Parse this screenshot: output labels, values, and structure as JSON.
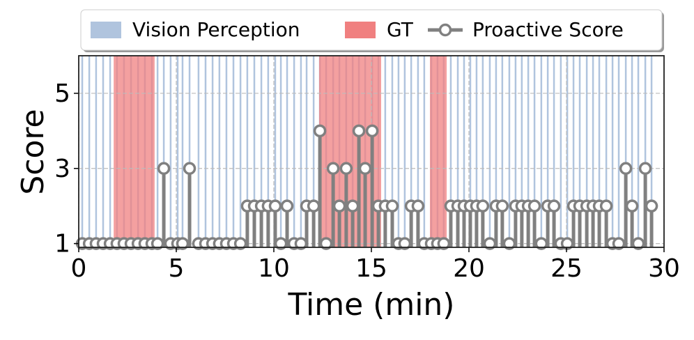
{
  "chart_data": {
    "type": "stem",
    "xlabel": "Time (min)",
    "ylabel": "Score",
    "xlim": [
      0,
      30
    ],
    "xticks": [
      0,
      5,
      10,
      15,
      20,
      25,
      30
    ],
    "ylim": [
      0.9,
      6
    ],
    "yticks": [
      1,
      3,
      5
    ],
    "grid": true,
    "legend": "top",
    "vision_perception": {
      "name": "Vision Perception",
      "color": "#b0c4de"
    },
    "gt": {
      "name": "GT",
      "color": "#f08080",
      "spans": [
        [
          1.79,
          3.89
        ],
        [
          12.32,
          15.5
        ],
        [
          18.0,
          18.86
        ]
      ]
    },
    "series": [
      {
        "name": "Proactive Score",
        "color": "#808080",
        "x": [
          0.18,
          0.54,
          0.89,
          1.25,
          1.61,
          1.96,
          2.32,
          2.68,
          3.04,
          3.39,
          3.75,
          4.04,
          4.36,
          4.71,
          5.07,
          5.32,
          5.68,
          6.14,
          6.5,
          6.86,
          7.21,
          7.57,
          7.93,
          8.29,
          8.64,
          9,
          9.36,
          9.71,
          10.07,
          10.36,
          10.68,
          11.04,
          11.39,
          11.68,
          12.04,
          12.36,
          12.68,
          13.04,
          13.36,
          13.71,
          14.04,
          14.36,
          14.68,
          15.04,
          15.36,
          15.71,
          16.07,
          16.39,
          16.71,
          17.04,
          17.39,
          17.71,
          18.07,
          18.39,
          18.71,
          19.07,
          19.43,
          19.75,
          20.07,
          20.39,
          20.71,
          21.07,
          21.39,
          21.71,
          22.07,
          22.39,
          22.71,
          23.04,
          23.36,
          23.71,
          24.04,
          24.36,
          24.71,
          25.04,
          25.36,
          25.68,
          26.04,
          26.36,
          26.68,
          27.04,
          27.36,
          27.68,
          28.04,
          28.36,
          28.68,
          29.04,
          29.36
        ],
        "values": [
          1,
          1,
          1,
          1,
          1,
          1,
          1,
          1,
          1,
          1,
          1,
          1,
          3,
          1,
          1,
          1,
          3,
          1,
          1,
          1,
          1,
          1,
          1,
          1,
          2,
          2,
          2,
          2,
          2,
          1,
          2,
          1,
          1,
          2,
          2,
          4,
          1,
          3,
          2,
          3,
          2,
          4,
          3,
          4,
          2,
          2,
          2,
          1,
          1,
          2,
          2,
          1,
          1,
          1,
          1,
          2,
          2,
          2,
          2,
          2,
          2,
          1,
          2,
          2,
          1,
          2,
          2,
          2,
          2,
          1,
          2,
          2,
          1,
          1,
          2,
          2,
          2,
          2,
          2,
          2,
          1,
          1,
          3,
          2,
          1,
          3,
          2
        ]
      }
    ]
  }
}
